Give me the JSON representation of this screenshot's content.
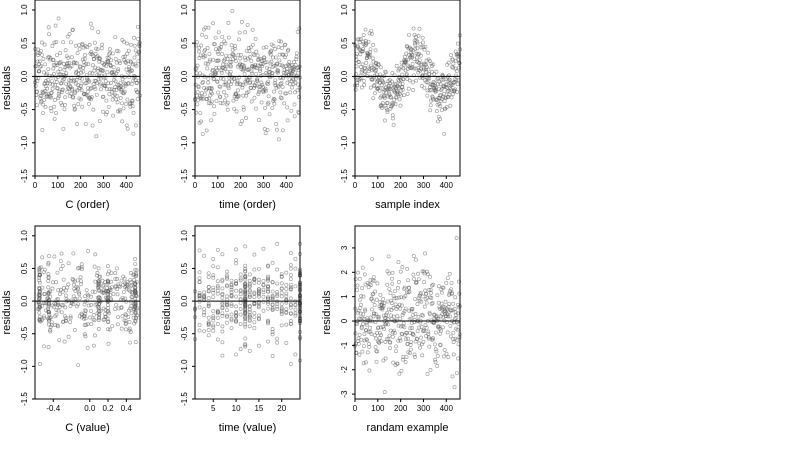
{
  "chart_data": [
    {
      "type": "scatter",
      "xlabel": "C (order)",
      "ylabel": "residuals",
      "xlim": [
        0,
        460
      ],
      "ylim": [
        -1.5,
        1.15
      ],
      "xticks": [
        0,
        100,
        200,
        300,
        400
      ],
      "xtick_labels": [
        "0",
        "100",
        "200",
        "300",
        "400"
      ],
      "yticks": [
        -1.5,
        -1.0,
        -0.5,
        0.0,
        0.5,
        1.0
      ],
      "ytick_labels": [
        "-1.5",
        "-1.0",
        "-0.5",
        "0.0",
        "0.5",
        "1.0"
      ],
      "reference_line_y": 0,
      "points": {
        "n": 460,
        "x_mode": "index",
        "pattern": "flat",
        "spread": 0.32,
        "clusters": [],
        "seed": 11
      }
    },
    {
      "type": "scatter",
      "xlabel": "time (order)",
      "ylabel": "residuals",
      "xlim": [
        0,
        460
      ],
      "ylim": [
        -1.5,
        1.15
      ],
      "xticks": [
        0,
        100,
        200,
        300,
        400
      ],
      "xtick_labels": [
        "0",
        "100",
        "200",
        "300",
        "400"
      ],
      "yticks": [
        -1.5,
        -1.0,
        -0.5,
        0.0,
        0.5,
        1.0
      ],
      "ytick_labels": [
        "-1.5",
        "-1.0",
        "-0.5",
        "0.0",
        "0.5",
        "1.0"
      ],
      "reference_line_y": 0,
      "points": {
        "n": 460,
        "x_mode": "index",
        "pattern": "flat",
        "spread": 0.32,
        "clusters": [],
        "seed": 23
      }
    },
    {
      "type": "scatter",
      "xlabel": "sample index",
      "ylabel": "residuals",
      "xlim": [
        0,
        460
      ],
      "ylim": [
        -1.5,
        1.15
      ],
      "xticks": [
        0,
        100,
        200,
        300,
        400
      ],
      "xtick_labels": [
        "0",
        "100",
        "200",
        "300",
        "400"
      ],
      "yticks": [
        -1.5,
        -1.0,
        -0.5,
        0.0,
        0.5,
        1.0
      ],
      "ytick_labels": [
        "-1.5",
        "-1.0",
        "-0.5",
        "0.0",
        "0.5",
        "1.0"
      ],
      "reference_line_y": 0,
      "points": {
        "n": 460,
        "x_mode": "index",
        "pattern": "wavy",
        "spread": 0.2,
        "clusters": [],
        "seed": 37
      }
    },
    {
      "type": "scatter",
      "xlabel": "C (value)",
      "ylabel": "residuals",
      "xlim": [
        -0.6,
        0.55
      ],
      "ylim": [
        -1.5,
        1.15
      ],
      "xticks": [
        -0.4,
        0.0,
        0.2,
        0.4
      ],
      "xtick_labels": [
        "-0.4",
        "0.0",
        "0.2",
        "0.4"
      ],
      "yticks": [
        -1.5,
        -1.0,
        -0.5,
        0.0,
        0.5,
        1.0
      ],
      "ytick_labels": [
        "-1.5",
        "-1.0",
        "-0.5",
        "0.0",
        "0.5",
        "1.0"
      ],
      "reference_line_y": 0,
      "points": {
        "n": 460,
        "x_mode": "uniform",
        "pattern": "flat",
        "spread": 0.3,
        "clusters": [
          -0.55,
          -0.45,
          0.1,
          0.2,
          0.5
        ],
        "seed": 41
      }
    },
    {
      "type": "scatter",
      "xlabel": "time (value)",
      "ylabel": "residuals",
      "xlim": [
        1,
        24
      ],
      "ylim": [
        -1.5,
        1.15
      ],
      "xticks": [
        5,
        10,
        15,
        20
      ],
      "xtick_labels": [
        "5",
        "10",
        "15",
        "20"
      ],
      "yticks": [
        -1.5,
        -1.0,
        -0.5,
        0.0,
        0.5,
        1.0
      ],
      "ytick_labels": [
        "-1.5",
        "-1.0",
        "-0.5",
        "0.0",
        "0.5",
        "1.0"
      ],
      "reference_line_y": 0,
      "points": {
        "n": 460,
        "x_mode": "integer",
        "pattern": "flat",
        "spread": 0.32,
        "clusters": [
          12,
          24
        ],
        "seed": 53
      }
    },
    {
      "type": "scatter",
      "xlabel": "randam example",
      "ylabel": "residuals",
      "xlim": [
        0,
        460
      ],
      "ylim": [
        -3.2,
        3.9
      ],
      "xticks": [
        0,
        100,
        200,
        300,
        400
      ],
      "xtick_labels": [
        "0",
        "100",
        "200",
        "300",
        "400"
      ],
      "yticks": [
        -3,
        -2,
        -1,
        0,
        1,
        2,
        3
      ],
      "ytick_labels": [
        "-3",
        "-2",
        "-1",
        "0",
        "1",
        "2",
        "3"
      ],
      "reference_line_y": 0,
      "points": {
        "n": 460,
        "x_mode": "index",
        "pattern": "flat",
        "spread": 1.0,
        "clusters": [],
        "seed": 67
      }
    }
  ]
}
